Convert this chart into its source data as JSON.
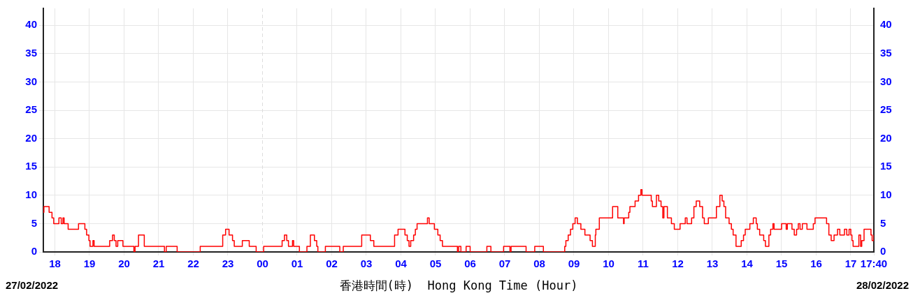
{
  "chart_data": {
    "type": "step",
    "xlabel": "香港時間(時)  Hong Kong Time (Hour)",
    "annotations": [
      "27/02/2022",
      "28/02/2022"
    ],
    "xlim": [
      "2022-02-27T17:40",
      "2022-02-28T17:40"
    ],
    "xticks": [
      {
        "value": "2022-02-27T18:00",
        "label": "18"
      },
      {
        "value": "2022-02-27T19:00",
        "label": "19"
      },
      {
        "value": "2022-02-27T20:00",
        "label": "20"
      },
      {
        "value": "2022-02-27T21:00",
        "label": "21"
      },
      {
        "value": "2022-02-27T22:00",
        "label": "22"
      },
      {
        "value": "2022-02-27T23:00",
        "label": "23"
      },
      {
        "value": "2022-02-28T00:00",
        "label": "00"
      },
      {
        "value": "2022-02-28T01:00",
        "label": "01"
      },
      {
        "value": "2022-02-28T02:00",
        "label": "02"
      },
      {
        "value": "2022-02-28T03:00",
        "label": "03"
      },
      {
        "value": "2022-02-28T04:00",
        "label": "04"
      },
      {
        "value": "2022-02-28T05:00",
        "label": "05"
      },
      {
        "value": "2022-02-28T06:00",
        "label": "06"
      },
      {
        "value": "2022-02-28T07:00",
        "label": "07"
      },
      {
        "value": "2022-02-28T08:00",
        "label": "08"
      },
      {
        "value": "2022-02-28T09:00",
        "label": "09"
      },
      {
        "value": "2022-02-28T10:00",
        "label": "10"
      },
      {
        "value": "2022-02-28T11:00",
        "label": "11"
      },
      {
        "value": "2022-02-28T12:00",
        "label": "12"
      },
      {
        "value": "2022-02-28T13:00",
        "label": "13"
      },
      {
        "value": "2022-02-28T14:00",
        "label": "14"
      },
      {
        "value": "2022-02-28T15:00",
        "label": "15"
      },
      {
        "value": "2022-02-28T16:00",
        "label": "16"
      },
      {
        "value": "2022-02-28T17:00",
        "label": "17"
      },
      {
        "value": "2022-02-28T17:40",
        "label": "17:40"
      }
    ],
    "ylim": [
      0,
      43
    ],
    "yticks": [
      0,
      5,
      10,
      15,
      20,
      25,
      30,
      35,
      40
    ],
    "y2lim": [
      0,
      43
    ],
    "y2ticks": [
      0,
      5,
      10,
      15,
      20,
      25,
      30,
      35,
      40
    ],
    "grid": true,
    "legend": false,
    "marker": "none",
    "line_style": "solid",
    "ref_lines": [
      {
        "axis": "x",
        "value": "2022-02-28T00:00",
        "color": "#dddddd",
        "line_style": "dashed"
      }
    ],
    "series": [
      {
        "color": "#ff0000",
        "x": [
          "2022-02-27T17:40",
          "2022-02-27T17:41",
          "2022-02-27T17:50",
          "2022-02-27T17:55",
          "2022-02-27T17:58",
          "2022-02-27T18:07",
          "2022-02-27T18:11",
          "2022-02-27T18:14",
          "2022-02-27T18:16",
          "2022-02-27T18:23",
          "2022-02-27T18:41",
          "2022-02-27T18:52",
          "2022-02-27T18:55",
          "2022-02-27T18:59",
          "2022-02-27T19:01",
          "2022-02-27T19:06",
          "2022-02-27T19:08",
          "2022-02-27T19:35",
          "2022-02-27T19:40",
          "2022-02-27T19:43",
          "2022-02-27T19:46",
          "2022-02-27T19:49",
          "2022-02-27T19:58",
          "2022-02-27T20:17",
          "2022-02-27T20:19",
          "2022-02-27T20:25",
          "2022-02-27T20:35",
          "2022-02-27T21:10",
          "2022-02-27T21:13",
          "2022-02-27T21:32",
          "2022-02-27T22:12",
          "2022-02-27T22:51",
          "2022-02-27T22:56",
          "2022-02-27T23:02",
          "2022-02-27T23:08",
          "2022-02-27T23:11",
          "2022-02-27T23:25",
          "2022-02-27T23:37",
          "2022-02-27T23:49",
          "2022-02-28T00:02",
          "2022-02-28T00:34",
          "2022-02-28T00:38",
          "2022-02-28T00:42",
          "2022-02-28T00:45",
          "2022-02-28T00:52",
          "2022-02-28T00:54",
          "2022-02-28T01:04",
          "2022-02-28T01:17",
          "2022-02-28T01:23",
          "2022-02-28T01:30",
          "2022-02-28T01:34",
          "2022-02-28T01:36",
          "2022-02-28T01:49",
          "2022-02-28T02:14",
          "2022-02-28T02:20",
          "2022-02-28T02:52",
          "2022-02-28T03:07",
          "2022-02-28T03:13",
          "2022-02-28T03:49",
          "2022-02-28T03:55",
          "2022-02-28T04:07",
          "2022-02-28T04:11",
          "2022-02-28T04:14",
          "2022-02-28T04:17",
          "2022-02-28T04:22",
          "2022-02-28T04:25",
          "2022-02-28T04:28",
          "2022-02-28T04:46",
          "2022-02-28T04:49",
          "2022-02-28T04:58",
          "2022-02-28T05:04",
          "2022-02-28T05:08",
          "2022-02-28T05:12",
          "2022-02-28T05:38",
          "2022-02-28T05:40",
          "2022-02-28T05:44",
          "2022-02-28T05:53",
          "2022-02-28T06:00",
          "2022-02-28T06:29",
          "2022-02-28T06:36",
          "2022-02-28T06:58",
          "2022-02-28T07:09",
          "2022-02-28T07:11",
          "2022-02-28T07:37",
          "2022-02-28T07:52",
          "2022-02-28T08:07",
          "2022-02-28T08:44",
          "2022-02-28T08:46",
          "2022-02-28T08:50",
          "2022-02-28T08:54",
          "2022-02-28T08:58",
          "2022-02-28T09:02",
          "2022-02-28T09:06",
          "2022-02-28T09:12",
          "2022-02-28T09:19",
          "2022-02-28T09:28",
          "2022-02-28T09:32",
          "2022-02-28T09:37",
          "2022-02-28T09:38",
          "2022-02-28T09:44",
          "2022-02-28T10:07",
          "2022-02-28T10:16",
          "2022-02-28T10:26",
          "2022-02-28T10:27",
          "2022-02-28T10:35",
          "2022-02-28T10:37",
          "2022-02-28T10:46",
          "2022-02-28T10:52",
          "2022-02-28T10:56",
          "2022-02-28T10:58",
          "2022-02-28T11:14",
          "2022-02-28T11:16",
          "2022-02-28T11:23",
          "2022-02-28T11:27",
          "2022-02-28T11:31",
          "2022-02-28T11:34",
          "2022-02-28T11:36",
          "2022-02-28T11:42",
          "2022-02-28T11:49",
          "2022-02-28T11:54",
          "2022-02-28T12:04",
          "2022-02-28T12:13",
          "2022-02-28T12:16",
          "2022-02-28T12:24",
          "2022-02-28T12:28",
          "2022-02-28T12:32",
          "2022-02-28T12:38",
          "2022-02-28T12:43",
          "2022-02-28T12:46",
          "2022-02-28T12:53",
          "2022-02-28T13:07",
          "2022-02-28T13:13",
          "2022-02-28T13:17",
          "2022-02-28T13:20",
          "2022-02-28T13:23",
          "2022-02-28T13:29",
          "2022-02-28T13:33",
          "2022-02-28T13:36",
          "2022-02-28T13:41",
          "2022-02-28T13:50",
          "2022-02-28T13:54",
          "2022-02-28T13:57",
          "2022-02-28T14:05",
          "2022-02-28T14:11",
          "2022-02-28T14:16",
          "2022-02-28T14:18",
          "2022-02-28T14:22",
          "2022-02-28T14:29",
          "2022-02-28T14:32",
          "2022-02-28T14:38",
          "2022-02-28T14:41",
          "2022-02-28T14:45",
          "2022-02-28T14:47",
          "2022-02-28T15:00",
          "2022-02-28T15:08",
          "2022-02-28T15:10",
          "2022-02-28T15:18",
          "2022-02-28T15:22",
          "2022-02-28T15:26",
          "2022-02-28T15:29",
          "2022-02-28T15:32",
          "2022-02-28T15:36",
          "2022-02-28T15:44",
          "2022-02-28T15:55",
          "2022-02-28T15:58",
          "2022-02-28T16:18",
          "2022-02-28T16:22",
          "2022-02-28T16:26",
          "2022-02-28T16:31",
          "2022-02-28T16:37",
          "2022-02-28T16:41",
          "2022-02-28T16:49",
          "2022-02-28T16:53",
          "2022-02-28T16:57",
          "2022-02-28T17:00",
          "2022-02-28T17:02",
          "2022-02-28T17:04",
          "2022-02-28T17:14",
          "2022-02-28T17:17",
          "2022-02-28T17:19",
          "2022-02-28T17:23",
          "2022-02-28T17:35",
          "2022-02-28T17:37",
          "2022-02-28T17:40"
        ],
        "values": [
          7,
          8,
          7,
          6,
          5,
          6,
          5,
          6,
          5,
          4,
          5,
          4,
          3,
          2,
          1,
          2,
          1,
          2,
          3,
          2,
          1,
          2,
          1,
          0,
          1,
          3,
          1,
          0,
          1,
          0,
          1,
          3,
          4,
          3,
          2,
          1,
          2,
          1,
          0,
          1,
          2,
          3,
          2,
          1,
          2,
          1,
          0,
          1,
          3,
          2,
          1,
          0,
          1,
          0,
          1,
          3,
          2,
          1,
          3,
          4,
          3,
          2,
          1,
          2,
          3,
          4,
          5,
          6,
          5,
          4,
          3,
          2,
          1,
          0,
          1,
          0,
          1,
          0,
          1,
          0,
          1,
          0,
          1,
          0,
          1,
          0,
          1,
          2,
          3,
          4,
          5,
          6,
          5,
          4,
          3,
          2,
          1,
          3,
          4,
          6,
          8,
          6,
          5,
          6,
          7,
          8,
          9,
          10,
          11,
          10,
          9,
          8,
          10,
          9,
          8,
          6,
          8,
          6,
          5,
          4,
          5,
          6,
          5,
          6,
          8,
          9,
          8,
          6,
          5,
          6,
          8,
          10,
          9,
          8,
          6,
          5,
          4,
          3,
          1,
          2,
          3,
          4,
          5,
          6,
          5,
          4,
          3,
          2,
          1,
          3,
          4,
          5,
          4,
          5,
          4,
          5,
          4,
          3,
          4,
          5,
          4,
          5,
          4,
          5,
          6,
          5,
          3,
          2,
          3,
          4,
          3,
          4,
          3,
          4,
          3,
          2,
          1,
          3,
          1,
          2,
          4,
          3,
          2,
          3
        ]
      }
    ]
  }
}
